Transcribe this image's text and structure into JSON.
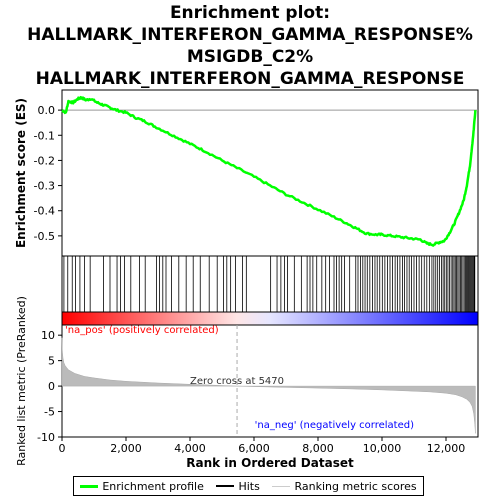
{
  "chart_data": {
    "type": "line",
    "title_lines": [
      "Enrichment plot:",
      "HALLMARK_INTERFERON_GAMMA_RESPONSE%",
      "MSIGDB_C2%",
      "HALLMARK_INTERFERON_GAMMA_RESPONSE"
    ],
    "xlabel": "Rank in Ordered Dataset",
    "es_panel": {
      "ylabel": "Enrichment score (ES)",
      "ylim": [
        -0.58,
        0.08
      ],
      "yticks": [
        0.0,
        -0.1,
        -0.2,
        -0.3,
        -0.4,
        -0.5
      ],
      "ytick_labels": [
        "0.0",
        "-0.1",
        "-0.2",
        "-0.3",
        "-0.4",
        "-0.5"
      ],
      "curve": {
        "name": "Enrichment profile",
        "color": "#00ff00",
        "x": [
          0,
          120,
          200,
          350,
          500,
          600,
          750,
          900,
          1100,
          1300,
          1500,
          1700,
          2000,
          2300,
          2600,
          2900,
          3300,
          3700,
          4100,
          4500,
          5000,
          5470,
          6000,
          6500,
          7000,
          7500,
          8000,
          8500,
          8900,
          9200,
          9500,
          9800,
          10000,
          10300,
          10600,
          10900,
          11200,
          11400,
          11600,
          11800,
          11950,
          12100,
          12250,
          12400,
          12550,
          12650,
          12750,
          12850,
          12920
        ],
        "y": [
          0.0,
          -0.01,
          0.035,
          0.03,
          0.045,
          0.05,
          0.04,
          0.045,
          0.03,
          0.02,
          0.01,
          0.0,
          -0.01,
          -0.03,
          -0.045,
          -0.065,
          -0.09,
          -0.115,
          -0.14,
          -0.165,
          -0.2,
          -0.23,
          -0.265,
          -0.3,
          -0.335,
          -0.365,
          -0.395,
          -0.425,
          -0.45,
          -0.47,
          -0.49,
          -0.495,
          -0.495,
          -0.5,
          -0.505,
          -0.51,
          -0.515,
          -0.53,
          -0.535,
          -0.525,
          -0.52,
          -0.49,
          -0.455,
          -0.41,
          -0.36,
          -0.3,
          -0.22,
          -0.1,
          0.0
        ]
      }
    },
    "hits_panel": {
      "name": "Hits",
      "positions": [
        60,
        180,
        320,
        420,
        560,
        700,
        880,
        1300,
        1500,
        1720,
        1830,
        1950,
        2150,
        2420,
        2600,
        2950,
        3050,
        3150,
        3250,
        3420,
        3650,
        3880,
        4100,
        4320,
        4600,
        4850,
        5050,
        5150,
        5270,
        5420,
        5640,
        5760,
        6520,
        6720,
        6840,
        6950,
        7050,
        7260,
        7480,
        7660,
        7750,
        7840,
        7960,
        8120,
        8240,
        8360,
        8500,
        8580,
        8660,
        8740,
        8830,
        8990,
        9180,
        9250,
        9330,
        9400,
        9470,
        9540,
        9620,
        9700,
        9780,
        9850,
        9930,
        10010,
        10090,
        10170,
        10250,
        10330,
        10410,
        10480,
        10560,
        10640,
        10700,
        10780,
        10850,
        10920,
        11000,
        11080,
        11160,
        11240,
        11320,
        11400,
        11480,
        11560,
        11620,
        11680,
        11740,
        11800,
        11860,
        11910,
        11960,
        12010,
        12060,
        12110,
        12160,
        12210,
        12250,
        12290,
        12330,
        12370,
        12410,
        12450,
        12490,
        12530,
        12570,
        12610,
        12640,
        12670,
        12700,
        12730,
        12760,
        12790,
        12820,
        12850,
        12880,
        12900
      ]
    },
    "metric_panel": {
      "name": "Ranking metric scores",
      "ylabel": "Ranked list metric (PreRanked)",
      "ylim": [
        -10,
        12
      ],
      "yticks": [
        10,
        5,
        0,
        -5,
        -10
      ],
      "ytick_labels": [
        "10",
        "5",
        "0",
        "-5",
        "-10"
      ],
      "x": [
        0,
        10,
        30,
        60,
        100,
        200,
        400,
        700,
        1000,
        1500,
        2000,
        3000,
        4000,
        5000,
        5470,
        6000,
        7000,
        8000,
        9000,
        10000,
        11000,
        11500,
        12000,
        12300,
        12500,
        12650,
        12750,
        12820,
        12870,
        12900,
        12920
      ],
      "y": [
        9.5,
        7,
        5.5,
        4.6,
        4.0,
        3.2,
        2.5,
        1.9,
        1.6,
        1.2,
        0.95,
        0.6,
        0.35,
        0.12,
        0.0,
        -0.1,
        -0.25,
        -0.4,
        -0.55,
        -0.75,
        -1.0,
        -1.15,
        -1.4,
        -1.7,
        -2.1,
        -2.6,
        -3.2,
        -4.0,
        -5.5,
        -7.5,
        -9.3
      ],
      "zero_cross_label": "Zero cross at 5470",
      "zero_cross_x": 5470,
      "pos_label": "'na_pos' (positively correlated)",
      "neg_label": "'na_neg' (negatively correlated)",
      "pos_color": "#ff0000",
      "neg_color": "#0000ff"
    },
    "xlim": [
      0,
      13000
    ],
    "xticks": [
      0,
      2000,
      4000,
      6000,
      8000,
      10000,
      12000
    ],
    "xtick_labels": [
      "0",
      "2,000",
      "4,000",
      "6,000",
      "8,000",
      "10,000",
      "12,000"
    ]
  },
  "legend": {
    "enrichment": "Enrichment profile",
    "hits": "Hits",
    "ranking": "Ranking metric scores"
  }
}
